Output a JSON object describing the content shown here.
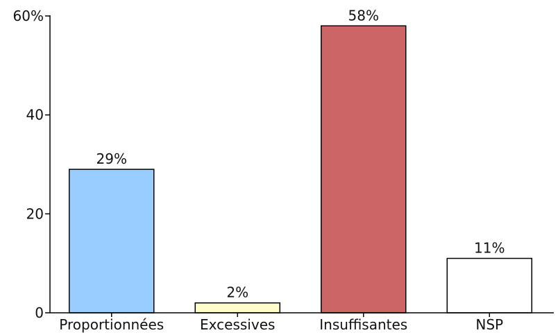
{
  "chart_data": {
    "type": "bar",
    "categories": [
      "Proportionnées",
      "Excessives",
      "Insuffisantes",
      "NSP"
    ],
    "values": [
      29,
      2,
      58,
      11
    ],
    "value_labels": [
      "29%",
      "2%",
      "58%",
      "11%"
    ],
    "colors": [
      "#99ccff",
      "#ffffcc",
      "#cc6666",
      "#ffffff"
    ],
    "ylim": [
      0,
      60
    ],
    "yticks": [
      {
        "value": 0,
        "label": "0"
      },
      {
        "value": 20,
        "label": "20"
      },
      {
        "value": 40,
        "label": "40"
      },
      {
        "value": 60,
        "label": "60%"
      }
    ],
    "grid": false,
    "legend": "none"
  }
}
